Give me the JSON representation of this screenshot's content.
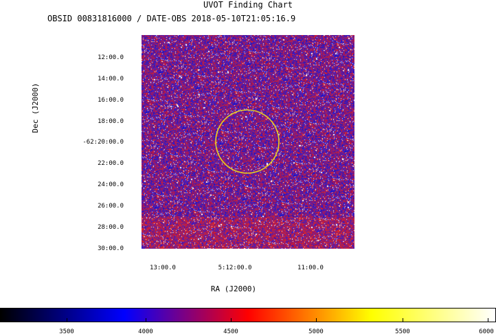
{
  "title": "UVOT Finding Chart",
  "subtitle": "OBSID 00831816000 / DATE-OBS 2018-05-10T21:05:16.9",
  "axes": {
    "x_title": "RA (J2000)",
    "y_title": "Dec (J2000)",
    "dec_ticks": [
      "12:00.0",
      "14:00.0",
      "16:00.0",
      "18:00.0",
      "-62:20:00.0",
      "22:00.0",
      "24:00.0",
      "26:00.0",
      "28:00.0",
      "30:00.0"
    ],
    "ra_ticks": [
      "13:00.0",
      "5:12:00.0",
      "11:00.0"
    ]
  },
  "target_circle": {
    "color": "#e8d020"
  },
  "colorbar": {
    "ticks": [
      "3500",
      "4000",
      "4500",
      "5000",
      "5500",
      "6000"
    ],
    "colors": [
      "#000000",
      "#0000ff",
      "#ff0000",
      "#ffff00",
      "#ffffff"
    ]
  },
  "colors": {
    "field_base": "#3b1a8a",
    "accent_red": "#c8102e",
    "accent_blue": "#1a1adc"
  }
}
